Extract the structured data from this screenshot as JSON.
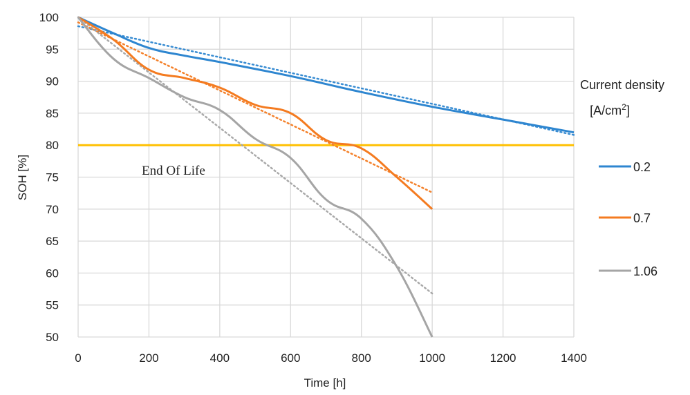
{
  "chart_data": {
    "type": "line",
    "xlabel": "Time [h]",
    "ylabel": "SOH [%]",
    "xlim": [
      0,
      1400
    ],
    "ylim": [
      50,
      100
    ],
    "x_ticks": [
      0,
      200,
      400,
      600,
      800,
      1000,
      1200,
      1400
    ],
    "y_ticks": [
      50,
      55,
      60,
      65,
      70,
      75,
      80,
      85,
      90,
      95,
      100
    ],
    "grid": true,
    "legend_title_line1": "Current density",
    "legend_title_line2": "[A/cm",
    "legend_title_sup": "2",
    "legend_title_close": "]",
    "legend_position": "right",
    "annotation": "End Of Life",
    "eol_line": {
      "y": 80,
      "color": "#FFC000"
    },
    "series": [
      {
        "name": "0.2",
        "color": "#2E86D0",
        "points": [
          [
            0,
            100
          ],
          [
            100,
            97.5
          ],
          [
            200,
            95.2
          ],
          [
            300,
            94
          ],
          [
            400,
            93
          ],
          [
            600,
            90.8
          ],
          [
            800,
            88.3
          ],
          [
            1000,
            86
          ],
          [
            1200,
            84
          ],
          [
            1400,
            82
          ]
        ],
        "trend": [
          [
            0,
            98.6
          ],
          [
            1400,
            81.6
          ]
        ]
      },
      {
        "name": "0.7",
        "color": "#F47B20",
        "points": [
          [
            0,
            100
          ],
          [
            100,
            96.5
          ],
          [
            200,
            91.8
          ],
          [
            300,
            90.5
          ],
          [
            400,
            89
          ],
          [
            500,
            86.3
          ],
          [
            600,
            85
          ],
          [
            700,
            80.8
          ],
          [
            800,
            79.5
          ],
          [
            900,
            75
          ],
          [
            1000,
            70
          ]
        ],
        "trend": [
          [
            0,
            99.2
          ],
          [
            1000,
            72.6
          ]
        ]
      },
      {
        "name": "1.06",
        "color": "#A5A5A5",
        "points": [
          [
            0,
            100
          ],
          [
            100,
            93.5
          ],
          [
            200,
            90.5
          ],
          [
            300,
            87.5
          ],
          [
            400,
            85.5
          ],
          [
            500,
            81
          ],
          [
            600,
            78
          ],
          [
            700,
            71.5
          ],
          [
            800,
            68.5
          ],
          [
            900,
            61
          ],
          [
            1000,
            50
          ]
        ],
        "trend": [
          [
            0,
            100
          ],
          [
            1000,
            56.8
          ]
        ]
      }
    ]
  }
}
